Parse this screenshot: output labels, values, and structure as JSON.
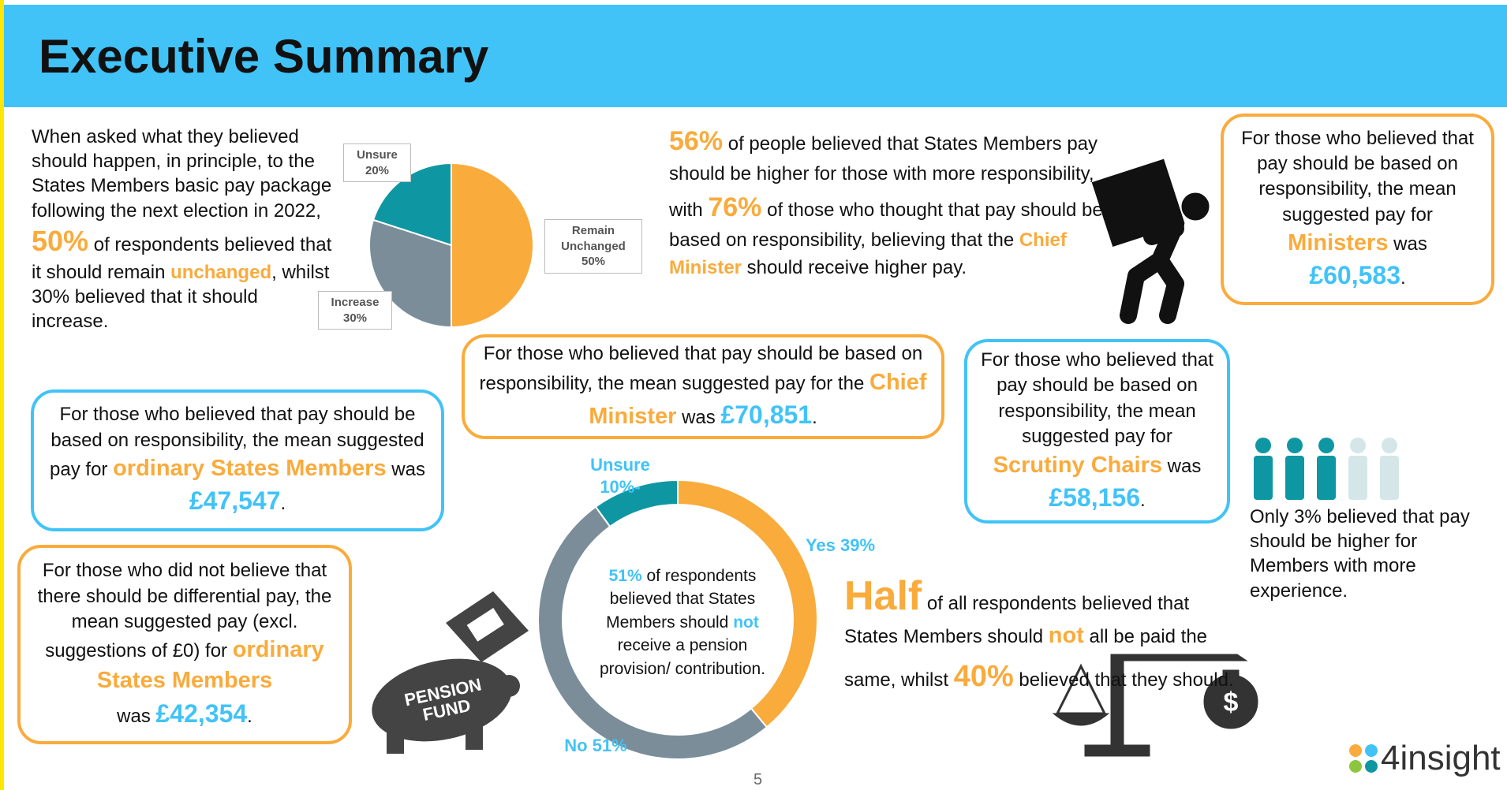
{
  "header": {
    "title": "Executive Summary"
  },
  "chart_data": [
    {
      "type": "pie",
      "categories": [
        "Remain Unchanged",
        "Increase",
        "Unsure"
      ],
      "values": [
        50,
        30,
        20
      ],
      "value_labels": [
        "50%",
        "30%",
        "20%"
      ],
      "colors": [
        "#f9ab3c",
        "#7a8d99",
        "#0e97a3"
      ]
    },
    {
      "type": "donut",
      "categories": [
        "Yes",
        "No",
        "Unsure"
      ],
      "values": [
        39,
        51,
        10
      ],
      "value_labels": [
        "39%",
        "51%",
        "10%-"
      ],
      "colors": [
        "#f9ab3c",
        "#7a8d99",
        "#0e97a3"
      ]
    }
  ],
  "intro": {
    "parts": [
      "When asked what they believed should happen, in principle, to the States Members basic pay package following the next election in 2022, ",
      "50%",
      " of respondents believed that it should remain ",
      "unchanged",
      ", whilst 30% believed that it should increase."
    ]
  },
  "responsibility": {
    "parts": [
      "56%",
      " of people believed that States Members pay should be higher for those with more responsibility, with ",
      "76%",
      " of those who thought that pay should be based on responsibility, believing that the ",
      "Chief Minister",
      " should receive higher pay."
    ]
  },
  "ministers": {
    "parts": [
      "For those who believed that pay should be based on responsibility, the mean suggested pay for ",
      "Ministers",
      " was ",
      "£60,583",
      "."
    ]
  },
  "chief_minister": {
    "parts": [
      "For those who believed that pay should be based on responsibility, the mean suggested pay for the ",
      "Chief Minister",
      " was ",
      "£70,851",
      "."
    ]
  },
  "scrutiny": {
    "parts": [
      "For those who believed that pay should be based on responsibility, the mean suggested pay for ",
      "Scrutiny Chairs",
      " was ",
      "£58,156",
      "."
    ]
  },
  "ordinary": {
    "parts": [
      "For those who believed that pay should be based on responsibility, the mean suggested pay for ",
      "ordinary States Members",
      " was ",
      "£47,547",
      "."
    ]
  },
  "no_differential": {
    "parts": [
      "For those who did not believe that there should be differential pay, the mean suggested pay (excl. suggestions of £0) for ",
      "ordinary States Members",
      " was ",
      "£42,354",
      "."
    ]
  },
  "pension": {
    "parts": [
      "51%",
      " of respondents believed that States Members should ",
      "not",
      " receive a pension provision/ contribution."
    ]
  },
  "pension_icon": {
    "lines": [
      "PENSION",
      "FUND"
    ]
  },
  "half": {
    "parts": [
      "Half",
      " of all respondents believed that States Members should ",
      "not",
      " all be paid the same, whilst ",
      "40%",
      " believed that they should."
    ]
  },
  "experience": "Only 3% believed that pay should be higher for Members with more experience.",
  "page_number": "5",
  "logo": "4insight"
}
